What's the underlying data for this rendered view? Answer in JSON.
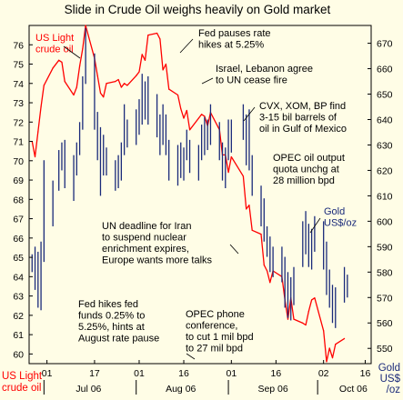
{
  "chart_data": {
    "type": "line",
    "title": "Slide in Crude Oil weighs heavily on Gold market",
    "y_left": {
      "ticks": [
        "60",
        "61",
        "62",
        "63",
        "64",
        "65",
        "66",
        "67",
        "68",
        "69",
        "70",
        "71",
        "72",
        "73",
        "74",
        "75",
        "76"
      ],
      "ylim": [
        59.5,
        77
      ],
      "label_lines": [
        "US Light",
        "crude oil"
      ]
    },
    "y_right": {
      "ticks": [
        "550",
        "560",
        "570",
        "580",
        "590",
        "600",
        "610",
        "620",
        "630",
        "640",
        "650",
        "660",
        "670"
      ],
      "ylim": [
        544,
        677
      ],
      "label_lines": [
        "Gold",
        "US$",
        "/oz"
      ]
    },
    "x_axis": {
      "range": [
        "2006-06-25",
        "2006-10-18"
      ],
      "day_ticks": [
        {
          "label": "01",
          "date": "2006-07-01"
        },
        {
          "label": "17",
          "date": "2006-07-17"
        },
        {
          "label": "01",
          "date": "2006-08-01"
        },
        {
          "label": "16",
          "date": "2006-08-16"
        },
        {
          "label": "01",
          "date": "2006-09-01"
        },
        {
          "label": "16",
          "date": "2006-09-16"
        },
        {
          "label": "02",
          "date": "2006-10-02"
        },
        {
          "label": "16",
          "date": "2006-10-16"
        }
      ],
      "month_ticks": [
        {
          "label": "Jul 06",
          "date": "2006-07-15"
        },
        {
          "label": "Aug 06",
          "date": "2006-08-15"
        },
        {
          "label": "Sep 06",
          "date": "2006-09-15"
        },
        {
          "label": "Oct 06",
          "date": "2006-10-12"
        }
      ],
      "month_dividers": [
        "2006-06-30",
        "2006-07-31",
        "2006-08-31",
        "2006-09-30"
      ]
    },
    "series": [
      {
        "name": "US Light crude oil",
        "axis": "left",
        "color": "#ff0000",
        "points": [
          [
            "2006-06-26",
            71.0
          ],
          [
            "2006-06-27",
            70.2
          ],
          [
            "2006-06-28",
            71.5
          ],
          [
            "2006-06-29",
            72.8
          ],
          [
            "2006-06-30",
            73.9
          ],
          [
            "2006-07-03",
            74.8
          ],
          [
            "2006-07-05",
            75.2
          ],
          [
            "2006-07-06",
            75.1
          ],
          [
            "2006-07-07",
            74.1
          ],
          [
            "2006-07-10",
            73.4
          ],
          [
            "2006-07-11",
            73.8
          ],
          [
            "2006-07-12",
            74.9
          ],
          [
            "2006-07-13",
            75.8
          ],
          [
            "2006-07-14",
            77.0
          ],
          [
            "2006-07-17",
            75.3
          ],
          [
            "2006-07-18",
            74.4
          ],
          [
            "2006-07-19",
            73.5
          ],
          [
            "2006-07-20",
            73.3
          ],
          [
            "2006-07-21",
            74.0
          ],
          [
            "2006-07-24",
            74.1
          ],
          [
            "2006-07-25",
            74.2
          ],
          [
            "2006-07-26",
            73.8
          ],
          [
            "2006-07-27",
            74.0
          ],
          [
            "2006-07-28",
            73.9
          ],
          [
            "2006-07-31",
            74.4
          ],
          [
            "2006-08-01",
            74.6
          ],
          [
            "2006-08-02",
            75.5
          ],
          [
            "2006-08-03",
            75.2
          ],
          [
            "2006-08-04",
            76.5
          ],
          [
            "2006-08-07",
            76.6
          ],
          [
            "2006-08-08",
            76.3
          ],
          [
            "2006-08-09",
            74.7
          ],
          [
            "2006-08-10",
            75.0
          ],
          [
            "2006-08-11",
            73.7
          ],
          [
            "2006-08-14",
            73.4
          ],
          [
            "2006-08-15",
            72.7
          ],
          [
            "2006-08-16",
            72.2
          ],
          [
            "2006-08-17",
            72.6
          ],
          [
            "2006-08-18",
            71.6
          ],
          [
            "2006-08-21",
            72.2
          ],
          [
            "2006-08-22",
            72.4
          ],
          [
            "2006-08-23",
            72.3
          ],
          [
            "2006-08-24",
            71.8
          ],
          [
            "2006-08-25",
            72.5
          ],
          [
            "2006-08-28",
            71.6
          ],
          [
            "2006-08-29",
            70.3
          ],
          [
            "2006-08-30",
            70.3
          ],
          [
            "2006-08-31",
            69.4
          ],
          [
            "2006-09-01",
            70.2
          ],
          [
            "2006-09-05",
            69.2
          ],
          [
            "2006-09-06",
            67.5
          ],
          [
            "2006-09-07",
            67.7
          ],
          [
            "2006-09-08",
            66.4
          ],
          [
            "2006-09-11",
            66.2
          ],
          [
            "2006-09-12",
            64.6
          ],
          [
            "2006-09-13",
            64.3
          ],
          [
            "2006-09-14",
            63.7
          ],
          [
            "2006-09-15",
            64.3
          ],
          [
            "2006-09-18",
            64.0
          ],
          [
            "2006-09-19",
            62.8
          ],
          [
            "2006-09-20",
            61.8
          ],
          [
            "2006-09-21",
            62.9
          ],
          [
            "2006-09-22",
            61.8
          ],
          [
            "2006-09-25",
            61.6
          ],
          [
            "2006-09-26",
            61.5
          ],
          [
            "2006-09-27",
            62.2
          ],
          [
            "2006-09-28",
            62.8
          ],
          [
            "2006-09-29",
            62.9
          ],
          [
            "2006-10-02",
            61.2
          ],
          [
            "2006-10-03",
            59.6
          ],
          [
            "2006-10-04",
            60.3
          ],
          [
            "2006-10-05",
            59.8
          ],
          [
            "2006-10-06",
            60.5
          ],
          [
            "2006-10-09",
            60.8
          ]
        ]
      },
      {
        "name": "Gold US$/oz",
        "axis": "right",
        "color": "#1a2a7a",
        "style": "high-low",
        "bars": [
          [
            "2006-06-26",
            587,
            580
          ],
          [
            "2006-06-27",
            590,
            573
          ],
          [
            "2006-06-28",
            588,
            566
          ],
          [
            "2006-06-29",
            592,
            565
          ],
          [
            "2006-06-30",
            624,
            584
          ],
          [
            "2006-07-03",
            616,
            598
          ],
          [
            "2006-07-05",
            628,
            612
          ],
          [
            "2006-07-06",
            631,
            620
          ],
          [
            "2006-07-07",
            632,
            613
          ],
          [
            "2006-07-10",
            626,
            608
          ],
          [
            "2006-07-11",
            631,
            618
          ],
          [
            "2006-07-12",
            639,
            626
          ],
          [
            "2006-07-13",
            657,
            636
          ],
          [
            "2006-07-14",
            676,
            654
          ],
          [
            "2006-07-17",
            666,
            636
          ],
          [
            "2006-07-18",
            643,
            624
          ],
          [
            "2006-07-19",
            637,
            610
          ],
          [
            "2006-07-20",
            634,
            618
          ],
          [
            "2006-07-21",
            629,
            618
          ],
          [
            "2006-07-24",
            624,
            612
          ],
          [
            "2006-07-25",
            626,
            613
          ],
          [
            "2006-07-26",
            631,
            616
          ],
          [
            "2006-07-27",
            646,
            626
          ],
          [
            "2006-07-28",
            640,
            629
          ],
          [
            "2006-07-31",
            644,
            630
          ],
          [
            "2006-08-01",
            648,
            634
          ],
          [
            "2006-08-02",
            658,
            638
          ],
          [
            "2006-08-03",
            655,
            640
          ],
          [
            "2006-08-04",
            657,
            638
          ],
          [
            "2006-08-07",
            650,
            633
          ],
          [
            "2006-08-08",
            642,
            626
          ],
          [
            "2006-08-09",
            646,
            630
          ],
          [
            "2006-08-10",
            642,
            626
          ],
          [
            "2006-08-11",
            632,
            616
          ],
          [
            "2006-08-14",
            630,
            614
          ],
          [
            "2006-08-15",
            631,
            617
          ],
          [
            "2006-08-16",
            629,
            616
          ],
          [
            "2006-08-17",
            636,
            624
          ],
          [
            "2006-08-18",
            632,
            619
          ],
          [
            "2006-08-21",
            630,
            616
          ],
          [
            "2006-08-22",
            638,
            624
          ],
          [
            "2006-08-23",
            641,
            626
          ],
          [
            "2006-08-24",
            640,
            628
          ],
          [
            "2006-08-25",
            646,
            630
          ],
          [
            "2006-08-28",
            639,
            624
          ],
          [
            "2006-08-29",
            631,
            616
          ],
          [
            "2006-08-30",
            629,
            613
          ],
          [
            "2006-08-31",
            640,
            624
          ],
          [
            "2006-09-01",
            640,
            627
          ],
          [
            "2006-09-05",
            646,
            632
          ],
          [
            "2006-09-06",
            642,
            622
          ],
          [
            "2006-09-07",
            644,
            620
          ],
          [
            "2006-09-08",
            626,
            610
          ],
          [
            "2006-09-11",
            614,
            598
          ],
          [
            "2006-09-12",
            609,
            592
          ],
          [
            "2006-09-13",
            598,
            586
          ],
          [
            "2006-09-14",
            594,
            580
          ],
          [
            "2006-09-15",
            590,
            578
          ],
          [
            "2006-09-18",
            590,
            576
          ],
          [
            "2006-09-19",
            586,
            566
          ],
          [
            "2006-09-20",
            580,
            562
          ],
          [
            "2006-09-21",
            578,
            561
          ],
          [
            "2006-09-22",
            582,
            567
          ],
          [
            "2006-09-25",
            600,
            582
          ],
          [
            "2006-09-26",
            604,
            587
          ],
          [
            "2006-09-27",
            599,
            582
          ],
          [
            "2006-09-28",
            597,
            581
          ],
          [
            "2006-09-29",
            602,
            588
          ],
          [
            "2006-10-02",
            600,
            581
          ],
          [
            "2006-10-03",
            592,
            571
          ],
          [
            "2006-10-04",
            581,
            566
          ],
          [
            "2006-10-05",
            575,
            560
          ],
          [
            "2006-10-06",
            574,
            558
          ],
          [
            "2006-10-09",
            582,
            568
          ],
          [
            "2006-10-10",
            579,
            570
          ]
        ]
      }
    ],
    "annotations": [
      {
        "lines": [
          "US Light",
          "crude oil"
        ],
        "color": "#ff0000"
      },
      {
        "lines": [
          "Fed pauses rate",
          "hikes at 5.25%"
        ],
        "color": "#000000"
      },
      {
        "lines": [
          "Israel, Lebanon agree",
          "to UN cease fire"
        ],
        "color": "#000000"
      },
      {
        "lines": [
          "CVX, XOM, BP find",
          "3-15 bil barrels of",
          "oil in Gulf of Mexico"
        ],
        "color": "#000000"
      },
      {
        "lines": [
          "OPEC oil output",
          "quota unchg at",
          "28 million bpd"
        ],
        "color": "#000000"
      },
      {
        "lines": [
          "Gold",
          "US$/oz"
        ],
        "color": "#1a2a7a"
      },
      {
        "lines": [
          "UN deadline for Iran",
          "to suspend nuclear",
          "enrichment expires,",
          "Europe wants more talks"
        ],
        "color": "#000000"
      },
      {
        "lines": [
          "Fed hikes fed",
          "funds 0.25% to",
          "5.25%, hints at",
          "August rate pause"
        ],
        "color": "#000000"
      },
      {
        "lines": [
          "OPEC phone",
          "conference,",
          "to cut 1 mil bpd",
          "to 27 mil bpd"
        ],
        "color": "#000000"
      }
    ],
    "colors": {
      "background": "#fffde6",
      "oil": "#ff0000",
      "gold": "#1a2a7a",
      "axis_label": "#ff0000",
      "right_label": "#1a2a7a"
    }
  }
}
